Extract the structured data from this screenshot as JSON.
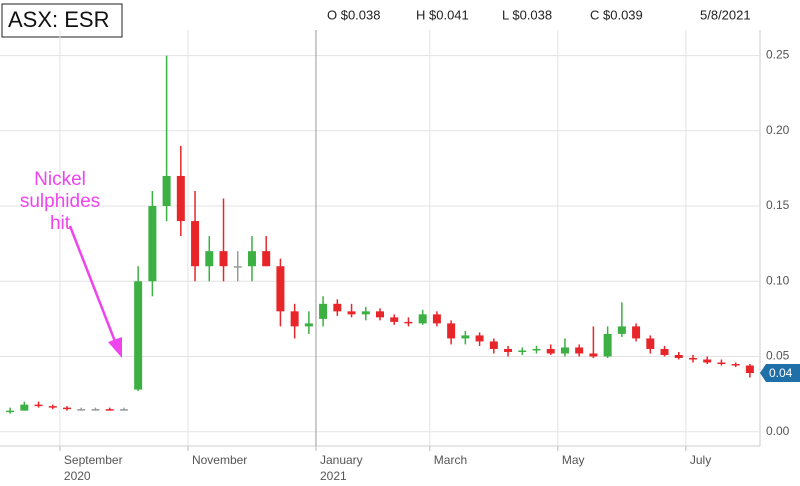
{
  "header": {
    "ticker": "ASX: ESR",
    "open": "O $0.038",
    "high": "H $0.041",
    "low": "L $0.038",
    "close": "C $0.039",
    "date": "5/8/2021"
  },
  "chart_data": {
    "type": "candlestick",
    "categories": [
      null,
      null,
      null,
      null,
      "September",
      null,
      null,
      null,
      null,
      null,
      null,
      null,
      null,
      "November",
      null,
      null,
      null,
      null,
      null,
      null,
      null,
      null,
      "January",
      null,
      null,
      null,
      null,
      null,
      null,
      null,
      "March",
      null,
      null,
      null,
      null,
      null,
      null,
      null,
      null,
      "May",
      null,
      null,
      null,
      null,
      null,
      null,
      null,
      null,
      "July",
      null,
      null,
      null,
      null
    ],
    "years": [
      null,
      null,
      null,
      null,
      "2020",
      null,
      null,
      null,
      null,
      null,
      null,
      null,
      null,
      null,
      null,
      null,
      null,
      null,
      null,
      null,
      null,
      null,
      "2021",
      null,
      null,
      null,
      null,
      null,
      null,
      null,
      null,
      null,
      null,
      null,
      null,
      null,
      null,
      null,
      null,
      null,
      null,
      null,
      null,
      null,
      null,
      null,
      null,
      null,
      null,
      null,
      null,
      null,
      null
    ],
    "open": [
      0.013,
      0.014,
      0.018,
      0.017,
      0.016,
      0.015,
      0.015,
      0.015,
      0.015,
      0.028,
      0.1,
      0.15,
      0.17,
      0.14,
      0.11,
      0.12,
      0.11,
      0.11,
      0.12,
      0.11,
      0.08,
      0.07,
      0.075,
      0.085,
      0.08,
      0.078,
      0.08,
      0.076,
      0.073,
      0.072,
      0.078,
      0.072,
      0.062,
      0.064,
      0.06,
      0.055,
      0.053,
      0.054,
      0.055,
      0.052,
      0.056,
      0.052,
      0.05,
      0.065,
      0.07,
      0.062,
      0.055,
      0.051,
      0.049,
      0.048,
      0.046,
      0.045,
      0.044
    ],
    "high": [
      0.016,
      0.02,
      0.02,
      0.018,
      0.017,
      0.016,
      0.016,
      0.016,
      0.016,
      0.11,
      0.16,
      0.25,
      0.19,
      0.16,
      0.13,
      0.155,
      0.12,
      0.13,
      0.13,
      0.115,
      0.085,
      0.08,
      0.09,
      0.088,
      0.085,
      0.083,
      0.082,
      0.078,
      0.076,
      0.081,
      0.08,
      0.074,
      0.067,
      0.066,
      0.062,
      0.057,
      0.056,
      0.057,
      0.058,
      0.062,
      0.058,
      0.07,
      0.07,
      0.086,
      0.072,
      0.064,
      0.057,
      0.053,
      0.051,
      0.05,
      0.048,
      0.046,
      0.045
    ],
    "low": [
      0.012,
      0.014,
      0.016,
      0.015,
      0.014,
      0.014,
      0.014,
      0.014,
      0.014,
      0.027,
      0.09,
      0.14,
      0.13,
      0.1,
      0.1,
      0.1,
      0.1,
      0.1,
      0.11,
      0.07,
      0.062,
      0.065,
      0.07,
      0.077,
      0.076,
      0.074,
      0.074,
      0.071,
      0.07,
      0.071,
      0.07,
      0.058,
      0.058,
      0.057,
      0.052,
      0.05,
      0.051,
      0.052,
      0.051,
      0.05,
      0.05,
      0.049,
      0.049,
      0.063,
      0.06,
      0.052,
      0.05,
      0.048,
      0.046,
      0.045,
      0.044,
      0.043,
      0.036
    ],
    "close": [
      0.014,
      0.018,
      0.017,
      0.016,
      0.015,
      0.015,
      0.015,
      0.014,
      0.015,
      0.1,
      0.15,
      0.17,
      0.14,
      0.11,
      0.12,
      0.11,
      0.11,
      0.12,
      0.11,
      0.08,
      0.07,
      0.072,
      0.085,
      0.08,
      0.078,
      0.08,
      0.076,
      0.073,
      0.072,
      0.078,
      0.072,
      0.062,
      0.064,
      0.06,
      0.055,
      0.053,
      0.054,
      0.055,
      0.052,
      0.056,
      0.052,
      0.05,
      0.065,
      0.07,
      0.062,
      0.055,
      0.051,
      0.049,
      0.048,
      0.046,
      0.045,
      0.044,
      0.039
    ],
    "up_color": "#3cb043",
    "down_color": "#e8262a",
    "flat_color": "#999999",
    "ylim": [
      -0.0095,
      0.267
    ],
    "yticks": [
      {
        "value": 0,
        "label": "0.00"
      },
      {
        "value": 0.05,
        "label": "0.05"
      },
      {
        "value": 0.1,
        "label": "0.10"
      },
      {
        "value": 0.15,
        "label": "0.15"
      },
      {
        "value": 0.2,
        "label": "0.20"
      },
      {
        "value": 0.25,
        "label": "0.25"
      }
    ],
    "grid": true,
    "last_price": {
      "value": 0.039,
      "label": "0.04",
      "color": "#1f6fa8"
    },
    "annotation": {
      "lines": [
        "Nickel",
        "sulphides",
        "hit"
      ],
      "color": "#ee44ee"
    }
  }
}
